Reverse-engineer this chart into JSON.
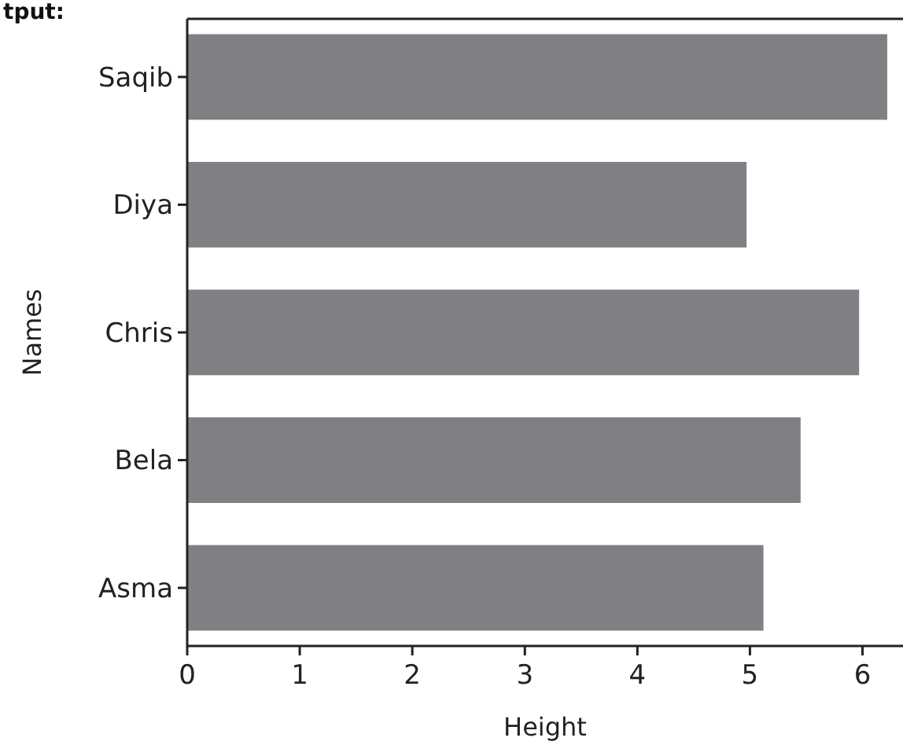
{
  "chart_data": {
    "type": "bar",
    "orientation": "horizontal",
    "categories": [
      "Saqib",
      "Diya",
      "Chris",
      "Bela",
      "Asma"
    ],
    "values": [
      6.22,
      4.97,
      5.97,
      5.45,
      5.12
    ],
    "color": "#7f8083",
    "xlim": [
      0,
      6.36
    ],
    "xticks": [
      0,
      1,
      2,
      3,
      4,
      5,
      6
    ],
    "xlabel": "Height",
    "ylabel": "Names",
    "grid": false,
    "annotations": [
      "tput:"
    ]
  }
}
